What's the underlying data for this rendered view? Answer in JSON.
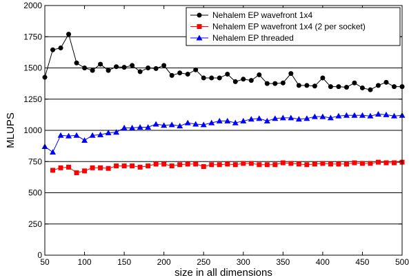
{
  "chart_data": {
    "type": "line",
    "xlabel": "size in all dimensions",
    "ylabel": "MLUPS",
    "xlim": [
      50,
      500
    ],
    "ylim": [
      0,
      2000
    ],
    "xticks": [
      50,
      100,
      150,
      200,
      250,
      300,
      350,
      400,
      450,
      500
    ],
    "yticks": [
      0,
      250,
      500,
      750,
      1000,
      1250,
      1500,
      1750,
      2000
    ],
    "grid": "horizontal",
    "legend_position": "top-right",
    "x": [
      50,
      60,
      70,
      80,
      90,
      100,
      110,
      120,
      130,
      140,
      150,
      160,
      170,
      180,
      190,
      200,
      210,
      220,
      230,
      240,
      250,
      260,
      270,
      280,
      290,
      300,
      310,
      320,
      330,
      340,
      350,
      360,
      370,
      380,
      390,
      400,
      410,
      420,
      430,
      440,
      450,
      460,
      470,
      480,
      490,
      500
    ],
    "series": [
      {
        "name": "Nehalem EP wavefront 1x4",
        "color": "#000000",
        "marker": "circle",
        "values": [
          1425,
          1645,
          1660,
          1770,
          1540,
          1500,
          1480,
          1530,
          1480,
          1510,
          1505,
          1520,
          1470,
          1500,
          1495,
          1520,
          1440,
          1460,
          1450,
          1485,
          1420,
          1420,
          1420,
          1450,
          1390,
          1410,
          1400,
          1445,
          1375,
          1375,
          1380,
          1455,
          1360,
          1360,
          1355,
          1420,
          1350,
          1350,
          1345,
          1380,
          1340,
          1325,
          1360,
          1385,
          1350,
          1350
        ]
      },
      {
        "name": "Nehalem EP wavefront 1x4 (2 per socket)",
        "color": "#ff0000",
        "marker": "square",
        "values": [
          null,
          680,
          700,
          705,
          660,
          675,
          700,
          700,
          695,
          715,
          715,
          715,
          705,
          715,
          730,
          730,
          715,
          725,
          730,
          730,
          710,
          725,
          725,
          730,
          725,
          735,
          735,
          725,
          725,
          725,
          740,
          735,
          730,
          725,
          730,
          735,
          730,
          730,
          730,
          740,
          735,
          735,
          745,
          740,
          740,
          745
        ]
      },
      {
        "name": "Nehalem EP threaded",
        "color": "#0000ff",
        "marker": "triangle",
        "values": [
          870,
          825,
          960,
          955,
          960,
          920,
          960,
          965,
          980,
          985,
          1020,
          1020,
          1025,
          1025,
          1050,
          1040,
          1045,
          1035,
          1060,
          1050,
          1045,
          1060,
          1075,
          1075,
          1060,
          1075,
          1090,
          1095,
          1075,
          1095,
          1100,
          1100,
          1090,
          1095,
          1110,
          1110,
          1100,
          1115,
          1120,
          1120,
          1120,
          1115,
          1130,
          1125,
          1115,
          1120
        ]
      }
    ]
  }
}
